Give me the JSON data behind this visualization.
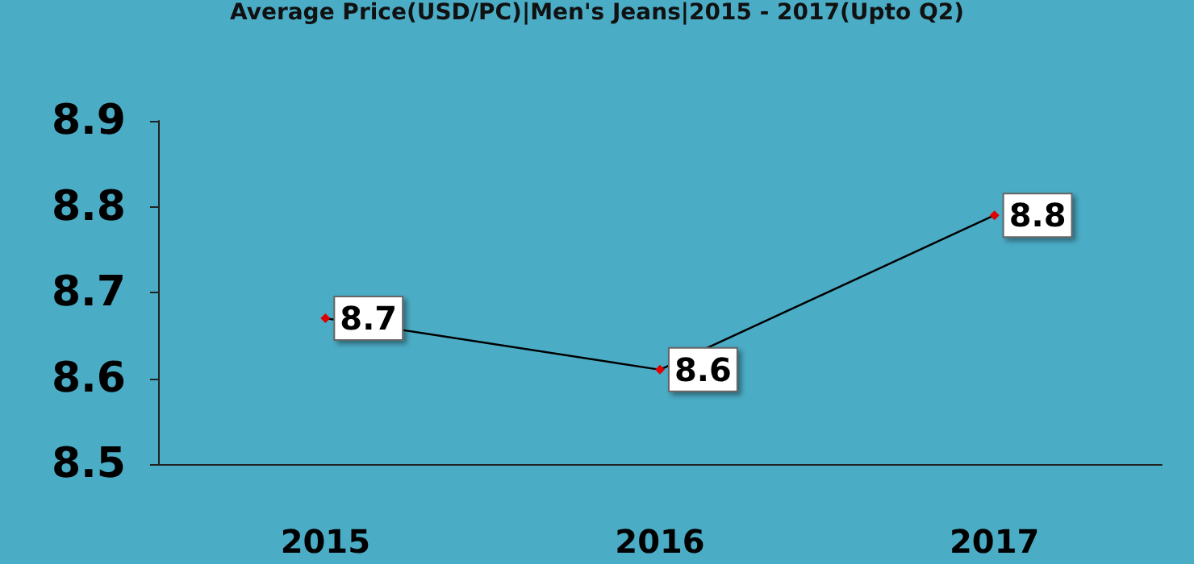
{
  "chart_data": {
    "type": "line",
    "title": "Average Price(USD/PC)|Men's Jeans|2015 - 2017(Upto Q2)",
    "categories": [
      "2015",
      "2016",
      "2017"
    ],
    "series": [
      {
        "color": "#000000",
        "values": [
          8.67,
          8.61,
          8.79
        ],
        "value_labels": [
          "8.7",
          "8.6",
          "8.8"
        ]
      }
    ],
    "ylim": [
      8.5,
      8.9
    ],
    "yticks": [
      8.5,
      8.6,
      8.7,
      8.8,
      8.9
    ],
    "grid": false,
    "marker": "diamond",
    "line_style": "solid"
  }
}
